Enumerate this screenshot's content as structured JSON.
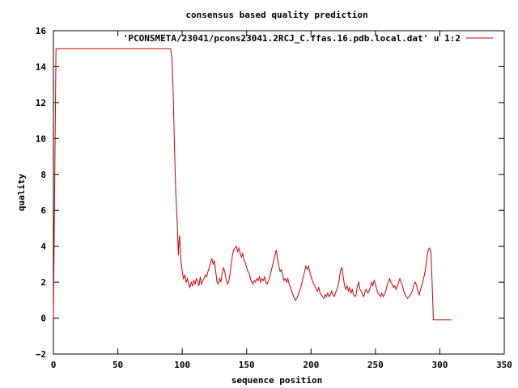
{
  "chart_data": {
    "type": "line",
    "title": "consensus based quality prediction",
    "xlabel": "sequence position",
    "ylabel": "quality",
    "xlim": [
      0,
      350
    ],
    "ylim": [
      -2,
      16
    ],
    "x_ticks": [
      0,
      50,
      100,
      150,
      200,
      250,
      300,
      350
    ],
    "y_ticks": [
      -2,
      0,
      2,
      4,
      6,
      8,
      10,
      12,
      14,
      16
    ],
    "grid": false,
    "legend_position": "top-right",
    "series": [
      {
        "name": "'PCONSMETA/23041/pcons23041.2RCJ_C.ffas.16.pdb.local.dat' u 1:2",
        "color": "#cc0000",
        "points": [
          [
            0,
            0
          ],
          [
            1,
            7.5
          ],
          [
            2,
            15
          ],
          [
            30,
            15
          ],
          [
            60,
            15
          ],
          [
            91,
            15
          ],
          [
            92,
            14.5
          ],
          [
            93,
            12.5
          ],
          [
            94,
            9.5
          ],
          [
            95,
            7
          ],
          [
            96,
            5.5
          ],
          [
            96.5,
            4.5
          ],
          [
            97,
            3.5
          ],
          [
            97.5,
            4.3
          ],
          [
            98,
            4.6
          ],
          [
            98.5,
            3.8
          ],
          [
            99,
            3.2
          ],
          [
            100,
            2.6
          ],
          [
            101,
            2.2
          ],
          [
            102,
            2.4
          ],
          [
            103,
            2.0
          ],
          [
            104,
            2.2
          ],
          [
            105,
            1.9
          ],
          [
            106,
            1.7
          ],
          [
            107,
            2.0
          ],
          [
            108,
            1.8
          ],
          [
            109,
            2.1
          ],
          [
            110,
            1.9
          ],
          [
            111,
            2.2
          ],
          [
            112,
            2.0
          ],
          [
            113,
            1.8
          ],
          [
            114,
            2.3
          ],
          [
            115,
            1.9
          ],
          [
            116,
            2.1
          ],
          [
            117,
            2.2
          ],
          [
            118,
            2.4
          ],
          [
            119,
            2.3
          ],
          [
            120,
            2.6
          ],
          [
            121,
            2.8
          ],
          [
            122,
            3.1
          ],
          [
            123,
            3.3
          ],
          [
            124,
            3.0
          ],
          [
            125,
            3.2
          ],
          [
            126,
            2.6
          ],
          [
            127,
            2.0
          ],
          [
            128,
            1.9
          ],
          [
            129,
            2.2
          ],
          [
            130,
            2.0
          ],
          [
            131,
            2.5
          ],
          [
            132,
            2.8
          ],
          [
            133,
            2.6
          ],
          [
            134,
            2.2
          ],
          [
            135,
            1.9
          ],
          [
            136,
            2.0
          ],
          [
            137,
            2.4
          ],
          [
            138,
            3.0
          ],
          [
            139,
            3.5
          ],
          [
            140,
            3.8
          ],
          [
            141,
            3.9
          ],
          [
            142,
            4.0
          ],
          [
            143,
            3.7
          ],
          [
            144,
            3.9
          ],
          [
            145,
            3.6
          ],
          [
            146,
            3.4
          ],
          [
            147,
            3.6
          ],
          [
            148,
            3.2
          ],
          [
            149,
            3.1
          ],
          [
            150,
            2.8
          ],
          [
            151,
            2.6
          ],
          [
            152,
            2.5
          ],
          [
            153,
            2.2
          ],
          [
            154,
            2.0
          ],
          [
            155,
            1.9
          ],
          [
            156,
            2.1
          ],
          [
            157,
            2.0
          ],
          [
            158,
            2.2
          ],
          [
            159,
            2.1
          ],
          [
            160,
            2.3
          ],
          [
            161,
            2.0
          ],
          [
            162,
            2.2
          ],
          [
            163,
            2.1
          ],
          [
            164,
            2.3
          ],
          [
            165,
            2.0
          ],
          [
            166,
            1.9
          ],
          [
            167,
            2.1
          ],
          [
            168,
            2.3
          ],
          [
            169,
            2.6
          ],
          [
            170,
            2.9
          ],
          [
            171,
            3.2
          ],
          [
            172,
            3.5
          ],
          [
            173,
            3.8
          ],
          [
            174,
            3.3
          ],
          [
            175,
            2.9
          ],
          [
            176,
            2.6
          ],
          [
            177,
            2.7
          ],
          [
            178,
            2.4
          ],
          [
            179,
            2.1
          ],
          [
            180,
            2.2
          ],
          [
            181,
            2.0
          ],
          [
            182,
            2.2
          ],
          [
            183,
            1.9
          ],
          [
            184,
            1.7
          ],
          [
            185,
            1.5
          ],
          [
            186,
            1.3
          ],
          [
            187,
            1.1
          ],
          [
            188,
            1.0
          ],
          [
            189,
            1.1
          ],
          [
            190,
            1.3
          ],
          [
            191,
            1.5
          ],
          [
            192,
            1.7
          ],
          [
            193,
            2.0
          ],
          [
            194,
            2.3
          ],
          [
            195,
            2.6
          ],
          [
            196,
            2.9
          ],
          [
            197,
            2.7
          ],
          [
            198,
            2.9
          ],
          [
            199,
            2.6
          ],
          [
            200,
            2.3
          ],
          [
            201,
            2.1
          ],
          [
            202,
            1.9
          ],
          [
            203,
            1.8
          ],
          [
            204,
            1.6
          ],
          [
            205,
            1.5
          ],
          [
            206,
            1.7
          ],
          [
            207,
            1.4
          ],
          [
            208,
            1.3
          ],
          [
            209,
            1.2
          ],
          [
            210,
            1.1
          ],
          [
            211,
            1.3
          ],
          [
            212,
            1.2
          ],
          [
            213,
            1.4
          ],
          [
            214,
            1.2
          ],
          [
            215,
            1.3
          ],
          [
            216,
            1.5
          ],
          [
            217,
            1.3
          ],
          [
            218,
            1.2
          ],
          [
            219,
            1.4
          ],
          [
            220,
            1.6
          ],
          [
            221,
            1.8
          ],
          [
            222,
            2.2
          ],
          [
            223,
            2.7
          ],
          [
            224,
            2.8
          ],
          [
            225,
            2.3
          ],
          [
            226,
            1.8
          ],
          [
            227,
            1.6
          ],
          [
            228,
            1.8
          ],
          [
            229,
            1.5
          ],
          [
            230,
            1.7
          ],
          [
            231,
            1.4
          ],
          [
            232,
            1.6
          ],
          [
            233,
            1.3
          ],
          [
            234,
            1.2
          ],
          [
            235,
            1.3
          ],
          [
            236,
            1.8
          ],
          [
            237,
            2.0
          ],
          [
            238,
            1.6
          ],
          [
            239,
            1.5
          ],
          [
            240,
            1.3
          ],
          [
            241,
            1.2
          ],
          [
            242,
            1.5
          ],
          [
            243,
            1.6
          ],
          [
            244,
            1.4
          ],
          [
            245,
            1.5
          ],
          [
            246,
            1.7
          ],
          [
            247,
            2.0
          ],
          [
            248,
            1.8
          ],
          [
            249,
            2.1
          ],
          [
            250,
            1.9
          ],
          [
            251,
            1.6
          ],
          [
            252,
            1.4
          ],
          [
            253,
            1.3
          ],
          [
            254,
            1.2
          ],
          [
            255,
            1.4
          ],
          [
            256,
            1.2
          ],
          [
            257,
            1.3
          ],
          [
            258,
            1.5
          ],
          [
            259,
            1.8
          ],
          [
            260,
            2.0
          ],
          [
            261,
            2.2
          ],
          [
            262,
            2.0
          ],
          [
            263,
            1.9
          ],
          [
            264,
            1.7
          ],
          [
            265,
            1.8
          ],
          [
            266,
            1.6
          ],
          [
            267,
            1.8
          ],
          [
            268,
            2.0
          ],
          [
            269,
            2.2
          ],
          [
            270,
            2.0
          ],
          [
            271,
            1.8
          ],
          [
            272,
            1.5
          ],
          [
            273,
            1.3
          ],
          [
            274,
            1.2
          ],
          [
            275,
            1.1
          ],
          [
            276,
            1.2
          ],
          [
            277,
            1.3
          ],
          [
            278,
            1.4
          ],
          [
            279,
            1.6
          ],
          [
            280,
            1.9
          ],
          [
            281,
            2.0
          ],
          [
            282,
            1.8
          ],
          [
            283,
            1.5
          ],
          [
            284,
            1.3
          ],
          [
            285,
            1.6
          ],
          [
            286,
            1.8
          ],
          [
            287,
            2.1
          ],
          [
            288,
            2.4
          ],
          [
            289,
            2.8
          ],
          [
            290,
            3.4
          ],
          [
            291,
            3.8
          ],
          [
            292,
            3.9
          ],
          [
            293,
            3.7
          ],
          [
            294,
            2.0
          ],
          [
            295,
            -0.1
          ],
          [
            300,
            -0.1
          ],
          [
            309,
            -0.1
          ]
        ]
      }
    ]
  }
}
